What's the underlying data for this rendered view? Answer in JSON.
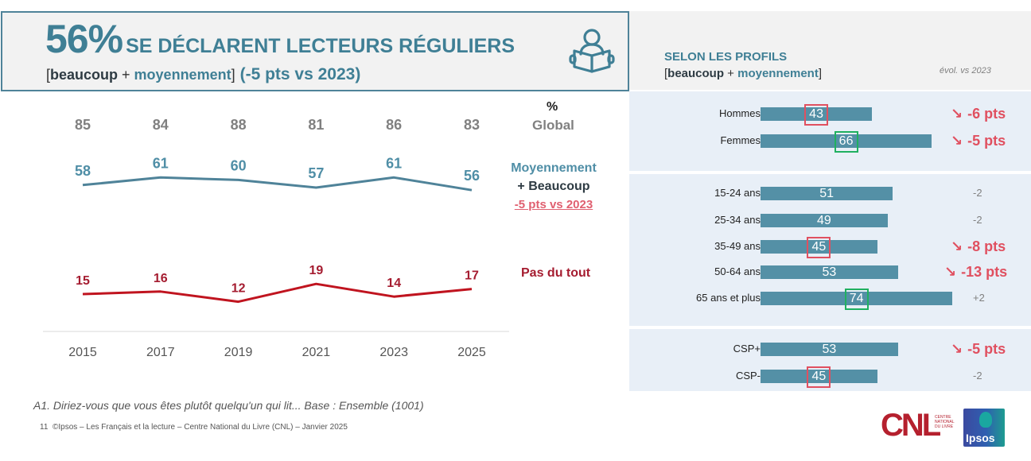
{
  "hero": {
    "big_value": "56%",
    "title": "SE DÉCLARENT LECTEURS RÉGULIERS",
    "bracket_open": "[",
    "word_beaucoup": "beaucoup",
    "plus": " + ",
    "word_moyennement": "moyennement",
    "bracket_close": "]",
    "evolution": "(-5 pts vs 2023)",
    "icon": "reader-book-icon"
  },
  "legend": {
    "percent_label": "%",
    "global_label": "Global",
    "moy_line1": "Moyennement",
    "moy_line2": "+ Beaucoup",
    "moy_delta": "-5 pts vs 2023",
    "pas_label": "Pas du tout"
  },
  "chart_data": {
    "type": "line",
    "title": "56% se déclarent lecteurs réguliers",
    "x": [
      "2015",
      "2017",
      "2019",
      "2021",
      "2023",
      "2025"
    ],
    "global_row": {
      "name": "Global",
      "values": [
        85,
        84,
        88,
        81,
        86,
        83
      ]
    },
    "series": [
      {
        "name": "Moyennement + Beaucoup",
        "values": [
          58,
          61,
          60,
          57,
          61,
          56
        ],
        "color": "#4f8399"
      },
      {
        "name": "Pas du tout",
        "values": [
          15,
          16,
          12,
          19,
          14,
          17
        ],
        "color": "#c0141f"
      }
    ],
    "xlabel": "",
    "ylabel": "%",
    "grid": false,
    "legend_position": "right"
  },
  "profiles": {
    "title": "SELON LES PROFILS",
    "bracket_open": "[",
    "word_beaucoup": "beaucoup",
    "plus": " + ",
    "word_moyennement": "moyennement",
    "bracket_close": "]",
    "evol_header": "évol. vs 2023",
    "bar_color": "#5490a6",
    "groups": [
      {
        "name": "sexe",
        "rows": [
          {
            "label": "Hommes",
            "value": 43,
            "highlight": "red",
            "evolution": "-6 pts",
            "evolution_style": "strong",
            "arrow": "↘"
          },
          {
            "label": "Femmes",
            "value": 66,
            "highlight": "green",
            "evolution": "-5 pts",
            "evolution_style": "strong",
            "arrow": "↘"
          }
        ]
      },
      {
        "name": "age",
        "rows": [
          {
            "label": "15-24 ans",
            "value": 51,
            "highlight": "",
            "evolution": "-2",
            "evolution_style": "soft",
            "arrow": ""
          },
          {
            "label": "25-34 ans",
            "value": 49,
            "highlight": "",
            "evolution": "-2",
            "evolution_style": "soft",
            "arrow": ""
          },
          {
            "label": "35-49 ans",
            "value": 45,
            "highlight": "red",
            "evolution": "-8 pts",
            "evolution_style": "strong",
            "arrow": "↘"
          },
          {
            "label": "50-64 ans",
            "value": 53,
            "highlight": "",
            "evolution": "-13 pts",
            "evolution_style": "strong",
            "arrow": "↘"
          },
          {
            "label": "65 ans et plus",
            "value": 74,
            "highlight": "green",
            "evolution": "+2",
            "evolution_style": "soft",
            "arrow": ""
          }
        ]
      },
      {
        "name": "csp",
        "rows": [
          {
            "label": "CSP+",
            "value": 53,
            "highlight": "",
            "evolution": "-5 pts",
            "evolution_style": "strong",
            "arrow": "↘"
          },
          {
            "label": "CSP-",
            "value": 45,
            "highlight": "red",
            "evolution": "-2",
            "evolution_style": "soft",
            "arrow": ""
          }
        ]
      }
    ]
  },
  "footer": {
    "question": "A1. Diriez-vous que vous êtes plutôt quelqu'un qui lit... Base : Ensemble (1001)",
    "page_number": "11",
    "copyright": "©Ipsos – Les Français et la lecture – Centre National du Livre (CNL) – Janvier 2025"
  },
  "logos": {
    "cnl_text": "CNL",
    "cnl_small": "CENTRE NATIONAL DU LIVRE",
    "ipsos_text": "Ipsos"
  }
}
